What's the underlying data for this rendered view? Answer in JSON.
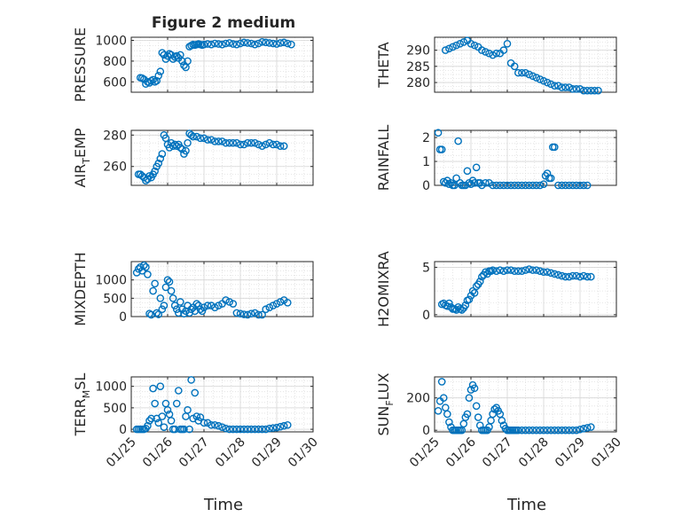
{
  "figure": {
    "title": "Figure 2 medium",
    "xlabel": "Time",
    "x_ticks": [
      "01/25",
      "01/26",
      "01/27",
      "01/28",
      "01/29",
      "01/30"
    ]
  },
  "colors": {
    "marker": "#0072BD",
    "axis": "#262626",
    "grid": "#dfdfdf",
    "frame": "#262626"
  },
  "chart_data": [
    {
      "type": "scatter",
      "name": "PRESSURE",
      "ylabel_parts": [
        "PRESSURE"
      ],
      "title": "Figure 2 medium",
      "xlabel": "",
      "xlim": [
        0,
        5
      ],
      "ylim": [
        500,
        1030
      ],
      "yticks": [
        600,
        800,
        1000
      ],
      "x": [
        0.25,
        0.3,
        0.35,
        0.4,
        0.45,
        0.5,
        0.55,
        0.6,
        0.65,
        0.7,
        0.75,
        0.8,
        0.85,
        0.9,
        0.95,
        1.0,
        1.05,
        1.1,
        1.15,
        1.2,
        1.25,
        1.3,
        1.35,
        1.4,
        1.45,
        1.5,
        1.55,
        1.6,
        1.65,
        1.7,
        1.75,
        1.8,
        1.85,
        1.9,
        1.95,
        2.0,
        2.1,
        2.2,
        2.3,
        2.4,
        2.5,
        2.6,
        2.7,
        2.8,
        2.9,
        3.0,
        3.1,
        3.2,
        3.3,
        3.4,
        3.5,
        3.6,
        3.7,
        3.8,
        3.9,
        4.0,
        4.1,
        4.2,
        4.3,
        4.4
      ],
      "y": [
        640,
        635,
        625,
        580,
        600,
        590,
        610,
        620,
        600,
        610,
        660,
        700,
        880,
        860,
        820,
        850,
        870,
        860,
        820,
        840,
        850,
        830,
        860,
        800,
        760,
        740,
        800,
        940,
        950,
        960,
        955,
        960,
        965,
        960,
        955,
        960,
        965,
        960,
        970,
        965,
        960,
        970,
        975,
        965,
        960,
        970,
        980,
        975,
        970,
        960,
        970,
        985,
        980,
        975,
        970,
        965,
        975,
        980,
        970,
        960
      ]
    },
    {
      "type": "scatter",
      "name": "THETA",
      "ylabel_parts": [
        "THETA"
      ],
      "xlim": [
        0,
        5
      ],
      "ylim": [
        277,
        294
      ],
      "yticks": [
        280,
        285,
        290
      ],
      "x": [
        0.3,
        0.4,
        0.5,
        0.6,
        0.7,
        0.8,
        0.9,
        1.0,
        1.1,
        1.2,
        1.3,
        1.4,
        1.5,
        1.6,
        1.7,
        1.8,
        1.9,
        2.0,
        2.1,
        2.2,
        2.3,
        2.4,
        2.5,
        2.6,
        2.7,
        2.8,
        2.9,
        3.0,
        3.1,
        3.2,
        3.3,
        3.4,
        3.5,
        3.6,
        3.7,
        3.8,
        3.9,
        4.0,
        4.1,
        4.2,
        4.3,
        4.4,
        4.5
      ],
      "y": [
        290,
        290.5,
        291,
        291.5,
        292,
        292.5,
        293,
        292,
        291.5,
        291,
        290,
        289.5,
        289,
        288.5,
        289,
        289,
        290,
        292,
        286,
        285,
        283,
        283,
        283,
        282.5,
        282,
        281.5,
        281,
        280.5,
        280,
        279.5,
        279,
        279,
        278.5,
        278.5,
        278.5,
        278,
        278,
        278,
        277.5,
        277.5,
        277.5,
        277.5,
        277.5
      ]
    },
    {
      "type": "scatter",
      "name": "AIR_TEMP",
      "ylabel_parts": [
        "AIR",
        "T",
        "EMP"
      ],
      "xlim": [
        0,
        5
      ],
      "ylim": [
        248,
        283
      ],
      "yticks": [
        260,
        280
      ],
      "x": [
        0.2,
        0.25,
        0.3,
        0.35,
        0.4,
        0.45,
        0.5,
        0.55,
        0.6,
        0.65,
        0.7,
        0.75,
        0.8,
        0.85,
        0.9,
        0.95,
        1.0,
        1.05,
        1.1,
        1.15,
        1.2,
        1.25,
        1.3,
        1.35,
        1.4,
        1.45,
        1.5,
        1.55,
        1.6,
        1.65,
        1.7,
        1.8,
        1.9,
        2.0,
        2.1,
        2.2,
        2.3,
        2.4,
        2.5,
        2.6,
        2.7,
        2.8,
        2.9,
        3.0,
        3.1,
        3.2,
        3.3,
        3.4,
        3.5,
        3.6,
        3.7,
        3.8,
        3.9,
        4.0,
        4.1,
        4.2
      ],
      "y": [
        255,
        255,
        254,
        253,
        251,
        252,
        254,
        253,
        255,
        257,
        260,
        262,
        265,
        268,
        280,
        278,
        274,
        272,
        275,
        273,
        274,
        273,
        274,
        272,
        271,
        268,
        270,
        275,
        281,
        280,
        279,
        279,
        278,
        278,
        277,
        277,
        276,
        276,
        276,
        275,
        275,
        275,
        275,
        274,
        274,
        275,
        275,
        275,
        274,
        273,
        274,
        275,
        274,
        274,
        273,
        273
      ]
    },
    {
      "type": "scatter",
      "name": "RAINFALL",
      "ylabel_parts": [
        "RAINFALL"
      ],
      "xlim": [
        0,
        5
      ],
      "ylim": [
        0,
        2.3
      ],
      "yticks": [
        0,
        1,
        2
      ],
      "x": [
        0.1,
        0.15,
        0.2,
        0.25,
        0.3,
        0.35,
        0.4,
        0.45,
        0.5,
        0.55,
        0.6,
        0.65,
        0.7,
        0.75,
        0.8,
        0.85,
        0.9,
        0.95,
        1.0,
        1.05,
        1.1,
        1.15,
        1.2,
        1.25,
        1.3,
        1.4,
        1.5,
        1.6,
        1.7,
        1.8,
        1.9,
        2.0,
        2.1,
        2.2,
        2.3,
        2.4,
        2.5,
        2.6,
        2.7,
        2.8,
        2.9,
        3.0,
        3.05,
        3.1,
        3.15,
        3.2,
        3.25,
        3.3,
        3.4,
        3.5,
        3.6,
        3.7,
        3.8,
        3.9,
        4.0,
        4.1,
        4.2
      ],
      "y": [
        2.2,
        1.5,
        1.5,
        0.15,
        0.1,
        0.2,
        0.05,
        0.1,
        0,
        0,
        0.3,
        1.85,
        0.1,
        0,
        0,
        0,
        0.6,
        0.1,
        0.05,
        0.2,
        0.1,
        0.75,
        0.1,
        0.1,
        0,
        0.1,
        0.1,
        0,
        0,
        0,
        0,
        0,
        0,
        0,
        0,
        0,
        0,
        0,
        0,
        0,
        0,
        0.05,
        0.4,
        0.5,
        0.3,
        0.3,
        1.6,
        1.6,
        0,
        0,
        0,
        0,
        0,
        0,
        0,
        0,
        0
      ]
    },
    {
      "type": "scatter",
      "name": "MIXDEPTH",
      "ylabel_parts": [
        "MIXDEPTH"
      ],
      "xlim": [
        0,
        5
      ],
      "ylim": [
        0,
        1500
      ],
      "yticks": [
        0,
        500,
        1000
      ],
      "x": [
        0.15,
        0.2,
        0.25,
        0.3,
        0.35,
        0.4,
        0.45,
        0.5,
        0.55,
        0.6,
        0.65,
        0.7,
        0.75,
        0.8,
        0.85,
        0.9,
        0.95,
        1.0,
        1.05,
        1.1,
        1.15,
        1.2,
        1.25,
        1.3,
        1.35,
        1.4,
        1.45,
        1.5,
        1.55,
        1.6,
        1.65,
        1.7,
        1.75,
        1.8,
        1.85,
        1.9,
        1.95,
        2.0,
        2.1,
        2.2,
        2.3,
        2.4,
        2.5,
        2.6,
        2.7,
        2.8,
        2.9,
        3.0,
        3.1,
        3.2,
        3.3,
        3.4,
        3.5,
        3.6,
        3.7,
        3.8,
        3.9,
        4.0,
        4.1,
        4.2,
        4.3
      ],
      "y": [
        1200,
        1300,
        1350,
        1250,
        1400,
        1350,
        1150,
        80,
        50,
        700,
        900,
        100,
        60,
        500,
        200,
        300,
        800,
        1000,
        950,
        700,
        500,
        300,
        200,
        100,
        400,
        200,
        80,
        150,
        300,
        100,
        200,
        250,
        150,
        350,
        300,
        200,
        150,
        250,
        300,
        300,
        250,
        300,
        350,
        450,
        400,
        350,
        100,
        80,
        60,
        50,
        80,
        100,
        50,
        50,
        200,
        250,
        300,
        350,
        400,
        450,
        380
      ]
    },
    {
      "type": "scatter",
      "name": "H2OMIXRA",
      "ylabel_parts": [
        "H2OMIXRA"
      ],
      "xlim": [
        0,
        5
      ],
      "ylim": [
        -0.2,
        5.6
      ],
      "yticks": [
        0,
        5
      ],
      "x": [
        0.2,
        0.25,
        0.3,
        0.35,
        0.4,
        0.45,
        0.5,
        0.55,
        0.6,
        0.65,
        0.7,
        0.75,
        0.8,
        0.85,
        0.9,
        0.95,
        1.0,
        1.05,
        1.1,
        1.15,
        1.2,
        1.25,
        1.3,
        1.35,
        1.4,
        1.45,
        1.5,
        1.55,
        1.6,
        1.7,
        1.8,
        1.9,
        2.0,
        2.1,
        2.2,
        2.3,
        2.4,
        2.5,
        2.6,
        2.7,
        2.8,
        2.9,
        3.0,
        3.1,
        3.2,
        3.3,
        3.4,
        3.5,
        3.6,
        3.7,
        3.8,
        3.9,
        4.0,
        4.1,
        4.2,
        4.3
      ],
      "y": [
        1.1,
        1.2,
        1.0,
        0.9,
        1.2,
        0.8,
        0.6,
        0.6,
        0.5,
        0.8,
        0.6,
        0.5,
        0.7,
        1.0,
        1.5,
        1.6,
        2.0,
        2.5,
        2.3,
        3.0,
        3.2,
        3.5,
        4.0,
        4.2,
        4.5,
        4.3,
        4.6,
        4.6,
        4.7,
        4.6,
        4.7,
        4.6,
        4.7,
        4.7,
        4.6,
        4.6,
        4.6,
        4.7,
        4.8,
        4.7,
        4.7,
        4.6,
        4.5,
        4.5,
        4.4,
        4.3,
        4.2,
        4.1,
        4.0,
        4.0,
        4.1,
        4.1,
        4.0,
        4.1,
        4.0,
        4.0
      ]
    },
    {
      "type": "scatter",
      "name": "TERR_MSL",
      "ylabel_parts": [
        "TERR",
        "M",
        "SL"
      ],
      "xlim": [
        0,
        5
      ],
      "ylim": [
        -60,
        1220
      ],
      "yticks": [
        0,
        500,
        1000
      ],
      "x": [
        0.15,
        0.2,
        0.25,
        0.3,
        0.35,
        0.4,
        0.45,
        0.5,
        0.55,
        0.6,
        0.65,
        0.7,
        0.75,
        0.8,
        0.85,
        0.9,
        0.95,
        1.0,
        1.05,
        1.1,
        1.15,
        1.2,
        1.25,
        1.3,
        1.35,
        1.4,
        1.45,
        1.5,
        1.55,
        1.6,
        1.65,
        1.7,
        1.75,
        1.8,
        1.85,
        1.9,
        2.0,
        2.1,
        2.2,
        2.3,
        2.4,
        2.5,
        2.6,
        2.7,
        2.8,
        2.9,
        3.0,
        3.1,
        3.2,
        3.3,
        3.4,
        3.5,
        3.6,
        3.7,
        3.8,
        3.9,
        4.0,
        4.1,
        4.2,
        4.3
      ],
      "y": [
        0,
        0,
        0,
        0,
        0,
        20,
        80,
        200,
        250,
        950,
        600,
        250,
        150,
        1000,
        300,
        50,
        600,
        450,
        350,
        200,
        0,
        0,
        600,
        900,
        0,
        0,
        0,
        300,
        450,
        0,
        1150,
        250,
        850,
        300,
        200,
        280,
        150,
        150,
        100,
        100,
        80,
        50,
        20,
        0,
        0,
        0,
        0,
        0,
        0,
        0,
        0,
        0,
        0,
        0,
        20,
        30,
        40,
        60,
        80,
        100
      ]
    },
    {
      "type": "scatter",
      "name": "SUN_FLUX",
      "ylabel_parts": [
        "SUN",
        "F",
        "LUX"
      ],
      "xlim": [
        0,
        5
      ],
      "ylim": [
        -10,
        330
      ],
      "yticks": [
        0,
        200
      ],
      "x": [
        0.1,
        0.15,
        0.2,
        0.25,
        0.3,
        0.35,
        0.4,
        0.45,
        0.5,
        0.55,
        0.6,
        0.65,
        0.7,
        0.75,
        0.8,
        0.85,
        0.9,
        0.95,
        1.0,
        1.05,
        1.1,
        1.15,
        1.2,
        1.25,
        1.3,
        1.35,
        1.4,
        1.45,
        1.5,
        1.55,
        1.6,
        1.65,
        1.7,
        1.75,
        1.8,
        1.85,
        1.9,
        1.95,
        2.0,
        2.05,
        2.1,
        2.15,
        2.2,
        2.25,
        2.3,
        2.4,
        2.5,
        2.6,
        2.7,
        2.8,
        2.9,
        3.0,
        3.1,
        3.2,
        3.3,
        3.4,
        3.5,
        3.6,
        3.7,
        3.8,
        3.9,
        4.0,
        4.1,
        4.2,
        4.3
      ],
      "y": [
        120,
        180,
        300,
        200,
        140,
        100,
        50,
        20,
        0,
        0,
        0,
        0,
        0,
        0,
        40,
        80,
        100,
        200,
        250,
        280,
        260,
        150,
        80,
        30,
        0,
        0,
        0,
        0,
        20,
        60,
        100,
        130,
        140,
        120,
        100,
        60,
        30,
        10,
        0,
        0,
        0,
        0,
        0,
        0,
        0,
        0,
        0,
        0,
        0,
        0,
        0,
        0,
        0,
        0,
        0,
        0,
        0,
        0,
        0,
        0,
        0,
        5,
        10,
        15,
        20
      ]
    }
  ]
}
